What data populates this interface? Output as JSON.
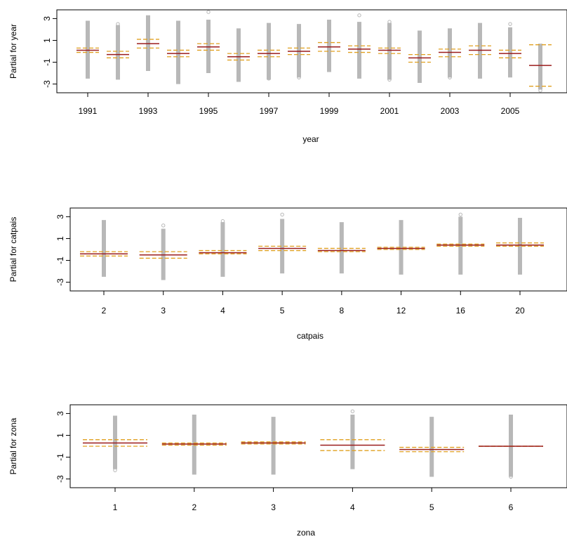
{
  "colors": {
    "fit": "#9b1c1c",
    "band": "#e0a020",
    "residual": "#b8b8b8",
    "axis": "#000000"
  },
  "chart_data": [
    {
      "type": "scatter",
      "title": "",
      "xlabel": "year",
      "ylabel": "Partial for year",
      "ylim": [
        -3.8,
        3.8
      ],
      "yticks": [
        "3",
        "1",
        "-1",
        "-3"
      ],
      "grid": false,
      "categories": [
        "1991",
        "1992",
        "1993",
        "1994",
        "1995",
        "1996",
        "1997",
        "1998",
        "1999",
        "2000",
        "2001",
        "2002",
        "2003",
        "2004",
        "2005",
        "2006"
      ],
      "x_tick_labels_shown": [
        "1991",
        "1993",
        "1995",
        "1997",
        "1999",
        "2001",
        "2003",
        "2005"
      ],
      "fit": [
        0.1,
        -0.3,
        0.7,
        -0.2,
        0.4,
        -0.5,
        -0.2,
        0.0,
        0.4,
        0.2,
        0.1,
        -0.6,
        -0.1,
        0.1,
        -0.2,
        -1.3
      ],
      "se_upper": [
        0.3,
        0.0,
        1.1,
        0.1,
        0.7,
        -0.2,
        0.1,
        0.3,
        0.8,
        0.5,
        0.3,
        -0.3,
        0.2,
        0.5,
        0.1,
        0.6
      ],
      "se_lower": [
        -0.1,
        -0.6,
        0.3,
        -0.5,
        0.1,
        -0.8,
        -0.5,
        -0.3,
        0.0,
        -0.1,
        -0.2,
        -1.0,
        -0.5,
        -0.3,
        -0.6,
        -3.2
      ],
      "residual_range": [
        [
          -2.5,
          2.8
        ],
        [
          -2.6,
          2.4
        ],
        [
          -1.8,
          3.3
        ],
        [
          -3.0,
          2.8
        ],
        [
          -2.0,
          2.9
        ],
        [
          -2.8,
          2.1
        ],
        [
          -2.6,
          2.6
        ],
        [
          -2.4,
          2.5
        ],
        [
          -1.9,
          2.9
        ],
        [
          -2.5,
          2.7
        ],
        [
          -2.6,
          2.6
        ],
        [
          -2.9,
          1.9
        ],
        [
          -2.4,
          2.1
        ],
        [
          -2.5,
          2.6
        ],
        [
          -2.4,
          2.2
        ],
        [
          -3.5,
          0.7
        ]
      ],
      "outliers_high": [
        null,
        2.5,
        null,
        null,
        3.6,
        null,
        null,
        null,
        null,
        3.3,
        2.7,
        null,
        null,
        null,
        2.5,
        null
      ],
      "outliers_low": [
        null,
        null,
        null,
        null,
        null,
        null,
        -2.5,
        -2.4,
        null,
        null,
        -2.6,
        null,
        -2.4,
        null,
        null,
        -3.6
      ]
    },
    {
      "type": "scatter",
      "title": "",
      "xlabel": "catpais",
      "ylabel": "Partial for catpais",
      "ylim": [
        -3.8,
        3.8
      ],
      "yticks": [
        "3",
        "1",
        "-1",
        "-3"
      ],
      "grid": false,
      "categories": [
        "2",
        "3",
        "4",
        "5",
        "8",
        "12",
        "16",
        "20"
      ],
      "x_tick_labels_shown": [
        "2",
        "3",
        "4",
        "5",
        "8",
        "12",
        "16",
        "20"
      ],
      "fit": [
        -0.4,
        -0.5,
        -0.3,
        0.1,
        -0.1,
        0.1,
        0.4,
        0.4
      ],
      "se_upper": [
        -0.2,
        -0.2,
        -0.1,
        0.3,
        0.1,
        0.2,
        0.5,
        0.6
      ],
      "se_lower": [
        -0.6,
        -0.8,
        -0.4,
        -0.1,
        -0.2,
        0.0,
        0.3,
        0.3
      ],
      "residual_range": [
        [
          -2.5,
          2.7
        ],
        [
          -2.8,
          1.9
        ],
        [
          -2.5,
          2.5
        ],
        [
          -2.2,
          2.8
        ],
        [
          -2.2,
          2.5
        ],
        [
          -2.3,
          2.7
        ],
        [
          -2.3,
          3.0
        ],
        [
          -2.3,
          2.9
        ]
      ],
      "outliers_high": [
        null,
        2.2,
        2.6,
        3.2,
        null,
        null,
        3.2,
        null
      ],
      "outliers_low": [
        null,
        null,
        null,
        null,
        null,
        null,
        null,
        null
      ]
    },
    {
      "type": "scatter",
      "title": "",
      "xlabel": "zona",
      "ylabel": "Partial for zona",
      "ylim": [
        -3.8,
        3.8
      ],
      "yticks": [
        "3",
        "1",
        "-1",
        "-3"
      ],
      "grid": false,
      "categories": [
        "1",
        "2",
        "3",
        "4",
        "5",
        "6"
      ],
      "x_tick_labels_shown": [
        "1",
        "2",
        "3",
        "4",
        "5",
        "6"
      ],
      "fit": [
        0.3,
        0.2,
        0.3,
        0.1,
        -0.3,
        0.0
      ],
      "se_upper": [
        0.6,
        0.3,
        0.4,
        0.6,
        -0.1,
        0.0
      ],
      "se_lower": [
        0.0,
        0.1,
        0.2,
        -0.4,
        -0.5,
        0.0
      ],
      "residual_range": [
        [
          -2.1,
          2.8
        ],
        [
          -2.6,
          2.9
        ],
        [
          -2.6,
          2.7
        ],
        [
          -2.1,
          2.9
        ],
        [
          -2.8,
          2.7
        ],
        [
          -2.8,
          2.9
        ]
      ],
      "outliers_high": [
        null,
        null,
        null,
        3.2,
        null,
        null
      ],
      "outliers_low": [
        -2.2,
        null,
        null,
        null,
        null,
        -2.8
      ]
    }
  ]
}
